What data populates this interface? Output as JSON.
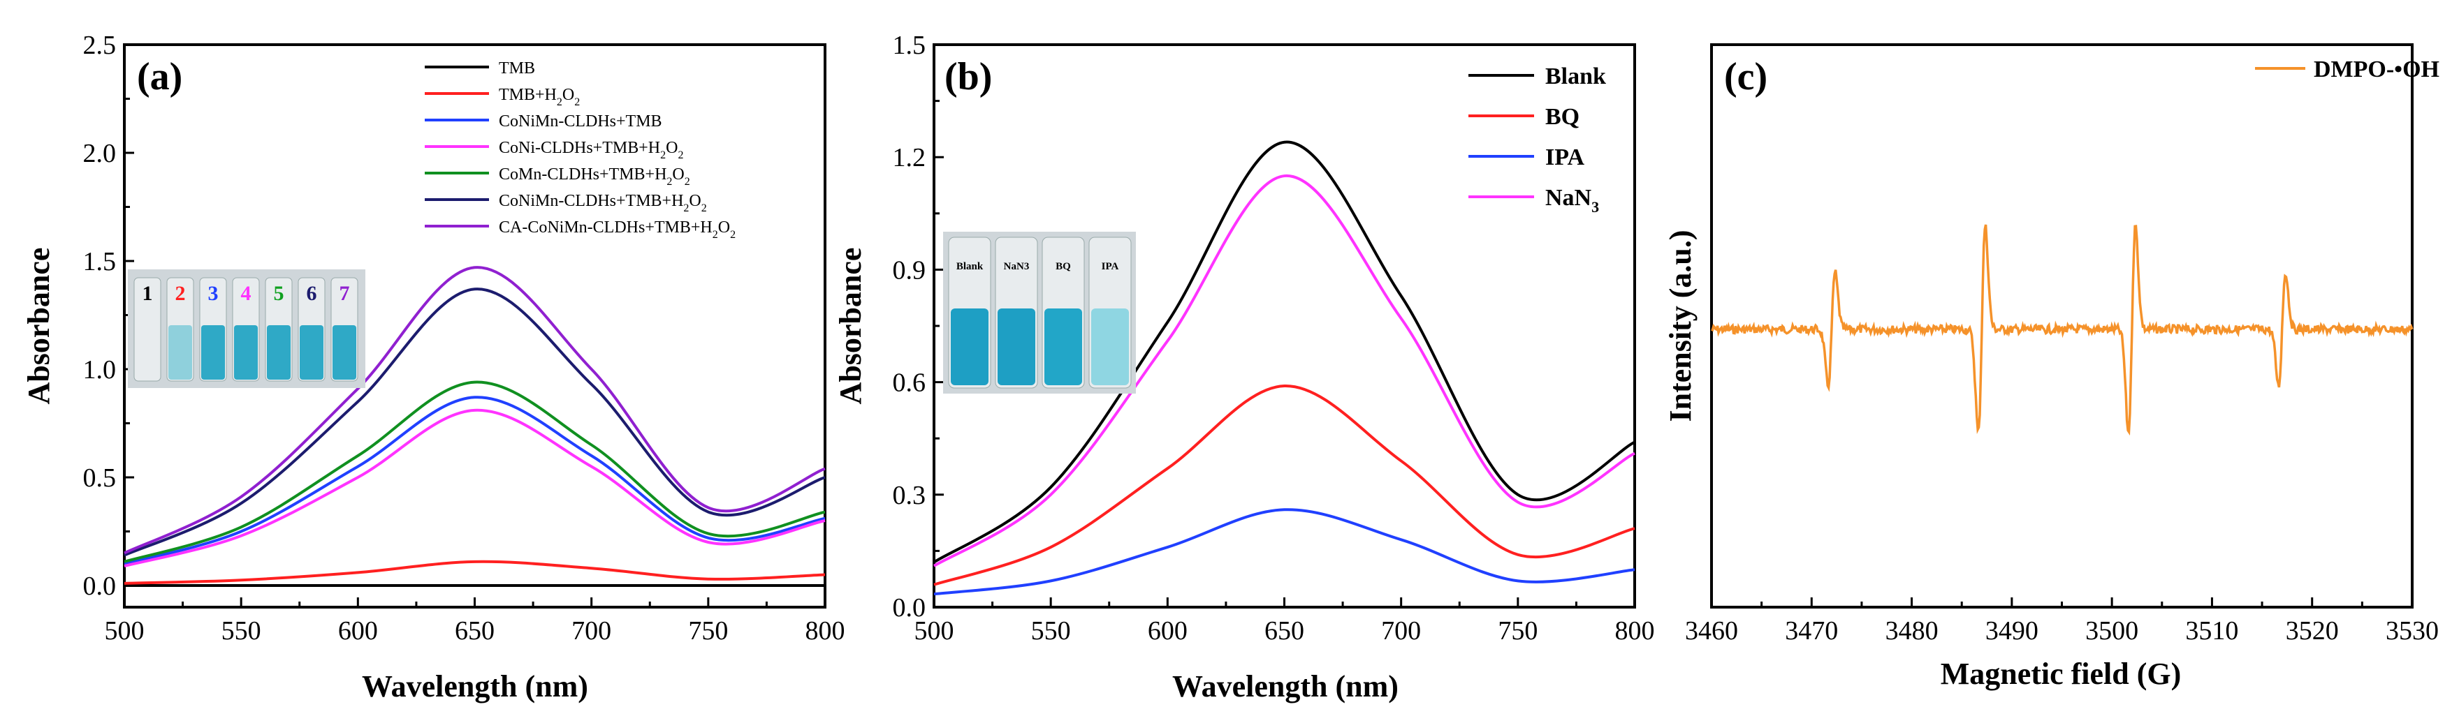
{
  "chart_data": [
    {
      "panel": "(a)",
      "type": "line",
      "xlabel": "Wavelength (nm)",
      "ylabel": "Absorbance",
      "xlim": [
        500,
        800
      ],
      "ylim": [
        -0.1,
        2.5
      ],
      "xticks": [
        "500",
        "550",
        "600",
        "650",
        "700",
        "750",
        "800"
      ],
      "yticks": [
        "0.0",
        "0.5",
        "1.0",
        "1.5",
        "2.0",
        "2.5"
      ],
      "series": [
        {
          "name": "TMB",
          "color": "#000000",
          "x": [
            500,
            550,
            600,
            650,
            700,
            750,
            800
          ],
          "y": [
            0.0,
            0.0,
            0.0,
            0.0,
            0.0,
            0.0,
            0.0
          ]
        },
        {
          "name": "TMB+H2O2",
          "color": "#ff2020",
          "x": [
            500,
            550,
            600,
            650,
            700,
            750,
            800
          ],
          "y": [
            0.01,
            0.025,
            0.06,
            0.11,
            0.08,
            0.03,
            0.05
          ]
        },
        {
          "name": "CoNiMn-CLDHs+TMB",
          "color": "#2040ff",
          "x": [
            500,
            550,
            600,
            650,
            700,
            750,
            800
          ],
          "y": [
            0.1,
            0.25,
            0.55,
            0.87,
            0.6,
            0.22,
            0.31
          ]
        },
        {
          "name": "CoNi-CLDHs+TMB+H2O2",
          "color": "#ff33ff",
          "x": [
            500,
            550,
            600,
            650,
            700,
            750,
            800
          ],
          "y": [
            0.09,
            0.23,
            0.5,
            0.81,
            0.55,
            0.2,
            0.3
          ]
        },
        {
          "name": "CoMn-CLDHs+TMB+H2O2",
          "color": "#109020",
          "x": [
            500,
            550,
            600,
            650,
            700,
            750,
            800
          ],
          "y": [
            0.11,
            0.27,
            0.6,
            0.94,
            0.65,
            0.24,
            0.34
          ]
        },
        {
          "name": "CoNiMn-CLDHs+TMB+H2O2",
          "color": "#1c1c6e",
          "x": [
            500,
            550,
            600,
            650,
            700,
            750,
            800
          ],
          "y": [
            0.14,
            0.38,
            0.85,
            1.37,
            0.93,
            0.34,
            0.5
          ]
        },
        {
          "name": "CA-CoNiMn-CLDHs+TMB+H2O2",
          "color": "#9020d0",
          "x": [
            500,
            550,
            600,
            650,
            700,
            750,
            800
          ],
          "y": [
            0.15,
            0.41,
            0.91,
            1.47,
            1.0,
            0.36,
            0.54
          ]
        }
      ],
      "legend": [
        {
          "text": "TMB",
          "sub": "",
          "tail": ""
        },
        {
          "text": "TMB+H",
          "sub": "2",
          "tail": "O",
          "sub2": "2"
        },
        {
          "text": "CoNiMn-CLDHs+TMB",
          "sub": "",
          "tail": ""
        },
        {
          "text": "CoNi-CLDHs+TMB+H",
          "sub": "2",
          "tail": "O",
          "sub2": "2"
        },
        {
          "text": "CoMn-CLDHs+TMB+H",
          "sub": "2",
          "tail": "O",
          "sub2": "2"
        },
        {
          "text": "CoNiMn-CLDHs+TMB+H",
          "sub": "2",
          "tail": "O",
          "sub2": "2"
        },
        {
          "text": "CA-CoNiMn-CLDHs+TMB+H",
          "sub": "2",
          "tail": "O",
          "sub2": "2"
        }
      ],
      "inset_vials": [
        "1",
        "2",
        "3",
        "4",
        "5",
        "6",
        "7"
      ],
      "inset_vial_colors": [
        "#000000",
        "#ff2020",
        "#2040ff",
        "#ff33ff",
        "#10a020",
        "#1c1c6e",
        "#9020d0"
      ]
    },
    {
      "panel": "(b)",
      "type": "line",
      "xlabel": "Wavelength (nm)",
      "ylabel": "Absorbance",
      "xlim": [
        500,
        800
      ],
      "ylim": [
        0.0,
        1.5
      ],
      "xticks": [
        "500",
        "550",
        "600",
        "650",
        "700",
        "750",
        "800"
      ],
      "yticks": [
        "0.0",
        "0.3",
        "0.6",
        "0.9",
        "1.2",
        "1.5"
      ],
      "series": [
        {
          "name": "Blank",
          "color": "#000000",
          "x": [
            500,
            550,
            600,
            650,
            700,
            750,
            800
          ],
          "y": [
            0.12,
            0.32,
            0.76,
            1.24,
            0.83,
            0.3,
            0.44
          ]
        },
        {
          "name": "BQ",
          "color": "#ff2020",
          "x": [
            500,
            550,
            600,
            650,
            700,
            750,
            800
          ],
          "y": [
            0.06,
            0.16,
            0.37,
            0.59,
            0.39,
            0.14,
            0.21
          ]
        },
        {
          "name": "IPA",
          "color": "#2040ff",
          "x": [
            500,
            550,
            600,
            650,
            700,
            750,
            800
          ],
          "y": [
            0.035,
            0.07,
            0.16,
            0.26,
            0.18,
            0.07,
            0.1
          ]
        },
        {
          "name": "NaN3",
          "color": "#ff33ff",
          "x": [
            500,
            550,
            600,
            650,
            700,
            750,
            800
          ],
          "y": [
            0.11,
            0.3,
            0.71,
            1.15,
            0.77,
            0.28,
            0.41
          ]
        }
      ],
      "legend": [
        {
          "text": "Blank",
          "sub": ""
        },
        {
          "text": "BQ",
          "sub": ""
        },
        {
          "text": "IPA",
          "sub": ""
        },
        {
          "text": "NaN",
          "sub": "3"
        }
      ],
      "inset_vials": [
        "Blank",
        "NaN3",
        "BQ",
        "IPA"
      ]
    },
    {
      "panel": "(c)",
      "type": "line",
      "xlabel": "Magnetic field (G)",
      "ylabel": "Intensity (a.u.)",
      "xlim": [
        3460,
        3530
      ],
      "xticks": [
        "3460",
        "3470",
        "3480",
        "3490",
        "3500",
        "3510",
        "3520",
        "3530"
      ],
      "series": [
        {
          "name": "DMPO-•OH",
          "color": "#f5922a",
          "peaks_G": [
            3472,
            3487,
            3502,
            3517
          ],
          "relative_amplitudes": [
            0.55,
            1.0,
            1.0,
            0.55
          ]
        }
      ],
      "legend": [
        {
          "text": "DMPO-•OH"
        }
      ]
    }
  ]
}
